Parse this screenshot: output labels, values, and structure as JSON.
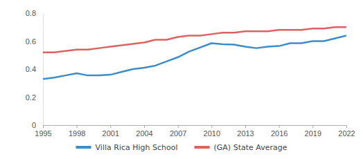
{
  "chart_data": {
    "type": "line",
    "x": [
      1995,
      1996,
      1997,
      1998,
      1999,
      2000,
      2001,
      2002,
      2003,
      2004,
      2005,
      2006,
      2007,
      2008,
      2009,
      2010,
      2011,
      2012,
      2013,
      2014,
      2015,
      2016,
      2017,
      2018,
      2019,
      2020,
      2021,
      2022
    ],
    "series": [
      {
        "name": "Villa Rica High School",
        "color": "#3b8dca",
        "values": [
          0.33,
          0.34,
          0.355,
          0.37,
          0.355,
          0.355,
          0.36,
          0.38,
          0.4,
          0.41,
          0.425,
          0.455,
          0.485,
          0.525,
          0.555,
          0.585,
          0.578,
          0.575,
          0.56,
          0.55,
          0.56,
          0.565,
          0.585,
          0.585,
          0.6,
          0.6,
          0.62,
          0.64
        ]
      },
      {
        "name": "(GA) State Average",
        "color": "#dc6262",
        "values": [
          0.52,
          0.52,
          0.53,
          0.54,
          0.54,
          0.55,
          0.56,
          0.57,
          0.58,
          0.59,
          0.61,
          0.61,
          0.63,
          0.64,
          0.64,
          0.65,
          0.66,
          0.66,
          0.67,
          0.67,
          0.67,
          0.68,
          0.68,
          0.68,
          0.69,
          0.69,
          0.7,
          0.7
        ]
      }
    ],
    "xlim": [
      1995,
      2022
    ],
    "xticks": [
      1995,
      1998,
      2001,
      2004,
      2007,
      2010,
      2013,
      2016,
      2019,
      2022
    ],
    "ylim": [
      0,
      0.8
    ],
    "yticks": [
      0,
      0.2,
      0.4,
      0.6,
      0.8
    ],
    "grid": false,
    "legend": "bottom"
  }
}
